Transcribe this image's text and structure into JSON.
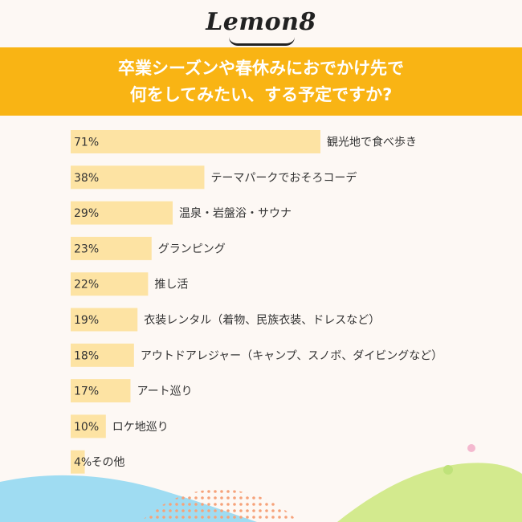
{
  "brand": {
    "logo_text": "Lemon8"
  },
  "colors": {
    "banner": "#f9b414",
    "bar": "#fde3a3",
    "text": "#333333",
    "background": "#fdf8f4"
  },
  "chart_data": {
    "type": "bar",
    "orientation": "horizontal",
    "title_lines": [
      "卒業シーズンや春休みにおでかけ先で",
      "何をしてみたい、する予定ですか?"
    ],
    "categories": [
      "観光地で食べ歩き",
      "テーマパークでおそろコーデ",
      "温泉・岩盤浴・サウナ",
      "グランピング",
      "推し活",
      "衣装レンタル（着物、民族衣装、ドレスなど）",
      "アウトドアレジャー（キャンプ、スノボ、ダイビングなど）",
      "アート巡り",
      "ロケ地巡り",
      "その他"
    ],
    "values": [
      71,
      38,
      29,
      23,
      22,
      19,
      18,
      17,
      10,
      4
    ],
    "value_labels": [
      "71%",
      "38%",
      "29%",
      "23%",
      "22%",
      "19%",
      "18%",
      "17%",
      "10%",
      "4%"
    ],
    "unit": "%",
    "xlim": [
      0,
      71
    ],
    "grid": false,
    "legend": "none"
  }
}
